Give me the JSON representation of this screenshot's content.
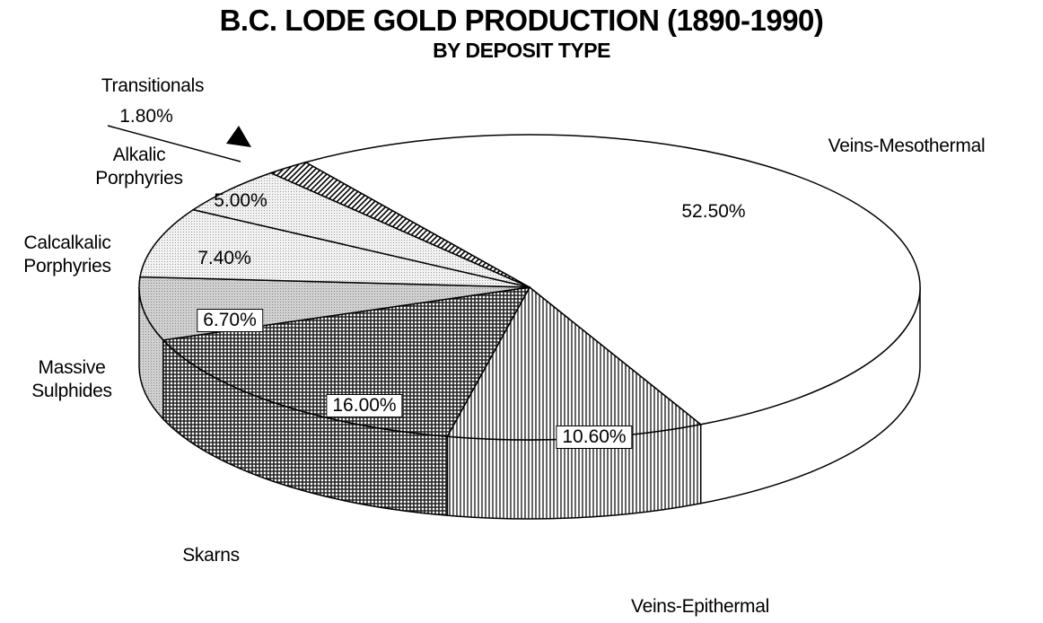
{
  "chart_data": {
    "type": "pie3d",
    "title": "B.C. LODE GOLD PRODUCTION (1890-1990)",
    "subtitle": "BY DEPOSIT TYPE",
    "categories": [
      "Veins-Mesothermal",
      "Veins-Epithermal",
      "Skarns",
      "Massive Sulphides",
      "Calcalkalic Porphyries",
      "Alkalic Porphyries",
      "Transitionals"
    ],
    "values": [
      52.5,
      10.6,
      16.0,
      6.7,
      7.4,
      5.0,
      1.8
    ],
    "value_labels": [
      "52.50%",
      "10.60%",
      "16.00%",
      "6.70%",
      "7.40%",
      "5.00%",
      "1.80%"
    ],
    "colors": [
      "#ffffff",
      "#ffffff",
      "#5a5a5a",
      "#c8c8c8",
      "#e6e6e6",
      "#e6e6e6",
      "#ffffff"
    ]
  }
}
